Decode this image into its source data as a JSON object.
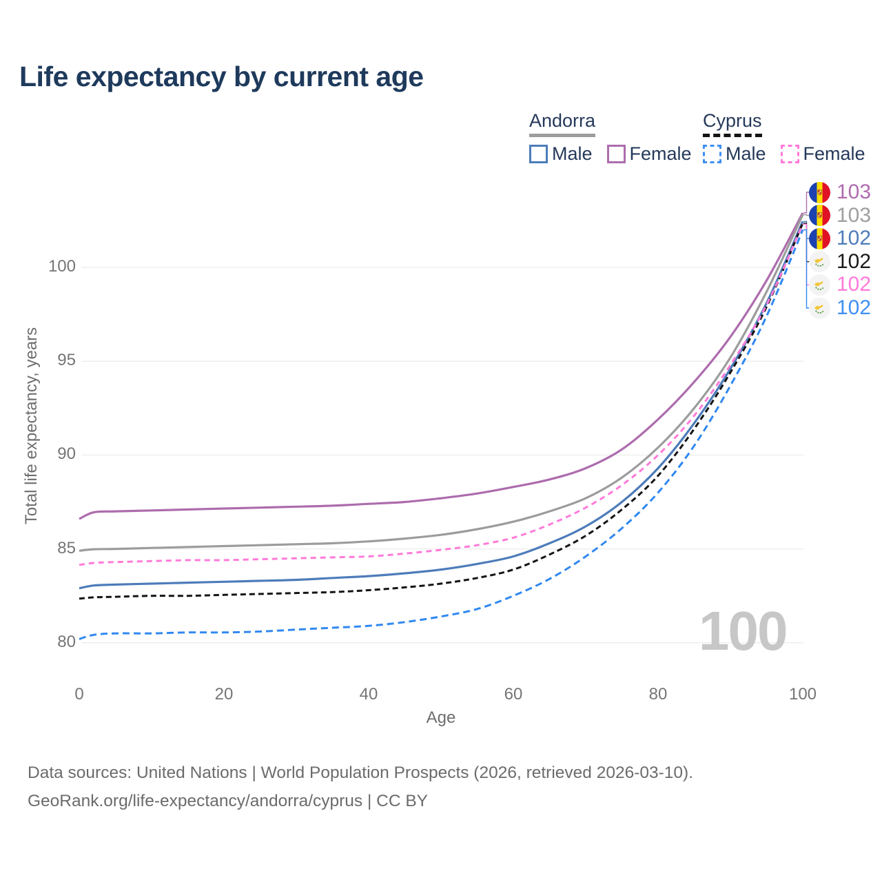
{
  "title": "Life expectancy by current age",
  "legend": {
    "groups": [
      {
        "label": "Andorra",
        "line_color": "#9c9c9c",
        "line_style": "solid",
        "items": [
          {
            "label": "Male",
            "color": "#4d7cba",
            "style": "solid"
          },
          {
            "label": "Female",
            "color": "#ad6cad",
            "style": "solid"
          }
        ]
      },
      {
        "label": "Cyprus",
        "line_color": "#141414",
        "line_style": "dashed",
        "items": [
          {
            "label": "Male",
            "color": "#3e8ff2",
            "style": "dashed"
          },
          {
            "label": "Female",
            "color": "#ff7ad9",
            "style": "dashed"
          }
        ]
      }
    ]
  },
  "y_axis": {
    "label": "Total life expectancy, years",
    "ticks": [
      "100",
      "95",
      "90",
      "85",
      "80"
    ]
  },
  "x_axis": {
    "label": "Age",
    "ticks": [
      "0",
      "20",
      "40",
      "60",
      "80",
      "100"
    ]
  },
  "watermark": "100",
  "end_labels": [
    {
      "value": "103",
      "country": "andorra",
      "color": "#b06ab0"
    },
    {
      "value": "103",
      "country": "andorra",
      "color": "#9e9e9e"
    },
    {
      "value": "102",
      "country": "andorra",
      "color": "#4d7cba"
    },
    {
      "value": "102",
      "country": "cyprus",
      "color": "#1a1a1a"
    },
    {
      "value": "102",
      "country": "cyprus",
      "color": "#ff7ad9"
    },
    {
      "value": "102",
      "country": "cyprus",
      "color": "#3e8ff2"
    }
  ],
  "footer": {
    "line1": "Data sources: United Nations | World Population Prospects (2026, retrieved 2026-03-10).",
    "line2": "GeoRank.org/life-expectancy/andorra/cyprus | CC BY"
  },
  "chart_data": {
    "type": "line",
    "title": "Life expectancy by current age",
    "xlabel": "Age",
    "ylabel": "Total life expectancy, years",
    "xlim": [
      0,
      100
    ],
    "ylim": [
      79.5,
      104
    ],
    "grid": "horizontal",
    "x": [
      0,
      2,
      5,
      10,
      15,
      20,
      25,
      30,
      35,
      40,
      45,
      50,
      55,
      60,
      65,
      70,
      75,
      80,
      85,
      90,
      95,
      100
    ],
    "series": [
      {
        "name": "Andorra Female",
        "color": "#ad6cad",
        "dash": null,
        "end_label": "103",
        "values": [
          86.6,
          86.95,
          87.0,
          87.05,
          87.1,
          87.15,
          87.2,
          87.25,
          87.3,
          87.4,
          87.5,
          87.7,
          87.95,
          88.3,
          88.7,
          89.3,
          90.3,
          91.9,
          93.9,
          96.3,
          99.3,
          102.9
        ]
      },
      {
        "name": "Andorra (both sexes)",
        "color": "#9c9c9c",
        "dash": null,
        "end_label": "103",
        "values": [
          84.9,
          84.98,
          85.0,
          85.05,
          85.1,
          85.15,
          85.2,
          85.25,
          85.3,
          85.4,
          85.55,
          85.75,
          86.05,
          86.45,
          87.0,
          87.7,
          88.8,
          90.4,
          92.5,
          95.2,
          98.7,
          102.8
        ]
      },
      {
        "name": "Andorra Male",
        "color": "#4d7cba",
        "dash": null,
        "end_label": "102",
        "values": [
          82.9,
          83.05,
          83.1,
          83.15,
          83.2,
          83.25,
          83.3,
          83.35,
          83.45,
          83.55,
          83.7,
          83.9,
          84.2,
          84.6,
          85.3,
          86.2,
          87.5,
          89.3,
          91.7,
          94.6,
          98.1,
          102.45
        ]
      },
      {
        "name": "Cyprus (both sexes)",
        "color": "#141414",
        "dash": "8,5",
        "end_label": "102",
        "values": [
          82.35,
          82.42,
          82.45,
          82.5,
          82.5,
          82.55,
          82.6,
          82.65,
          82.7,
          82.8,
          82.95,
          83.15,
          83.45,
          83.9,
          84.7,
          85.7,
          87.1,
          88.9,
          91.4,
          94.4,
          97.9,
          102.35
        ]
      },
      {
        "name": "Cyprus Female",
        "color": "#ff7ad9",
        "dash": "8,6",
        "end_label": "102",
        "values": [
          84.15,
          84.25,
          84.3,
          84.35,
          84.4,
          84.4,
          84.45,
          84.5,
          84.55,
          84.6,
          84.75,
          84.95,
          85.2,
          85.6,
          86.3,
          87.2,
          88.4,
          90.0,
          92.1,
          94.8,
          98.0,
          102.3
        ]
      },
      {
        "name": "Cyprus Male",
        "color": "#3088f0",
        "dash": "10,6",
        "end_label": "102",
        "values": [
          80.2,
          80.42,
          80.5,
          80.5,
          80.55,
          80.55,
          80.6,
          80.7,
          80.8,
          80.9,
          81.1,
          81.4,
          81.8,
          82.5,
          83.4,
          84.6,
          86.1,
          88.0,
          90.5,
          93.7,
          97.4,
          102.0
        ]
      }
    ]
  }
}
